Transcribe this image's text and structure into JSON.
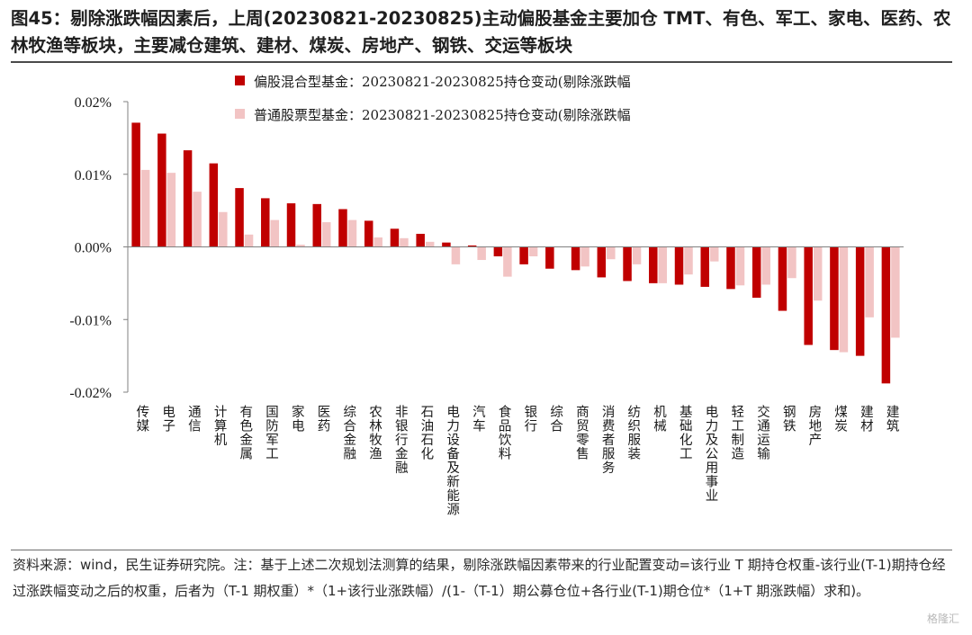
{
  "title": "图45：剔除涨跌幅因素后，上周(20230821-20230825)主动偏股基金主要加仓 TMT、有色、军工、家电、医药、农林牧渔等板块，主要减仓建筑、建材、煤炭、房地产、钢铁、交运等板块",
  "note": "资料来源：wind，民生证券研究院。注：基于上述二次规划法测算的结果，剔除涨跌幅因素带来的行业配置变动=该行业 T 期持仓权重-该行业(T-1)期持仓经过涨跌幅变动之后的权重，后者为（T-1 期权重）*（1+该行业涨跌幅）/(1-（T-1）期公募仓位+各行业(T-1)期仓位*（1+T 期涨跌幅）求和)。",
  "watermark": "格隆汇",
  "chart_data": {
    "type": "bar",
    "categories": [
      "传媒",
      "电子",
      "通信",
      "计算机",
      "有色金属",
      "国防军工",
      "家电",
      "医药",
      "综合金融",
      "农林牧渔",
      "非银行金融",
      "石油石化",
      "电力设备及新能源",
      "汽车",
      "食品饮料",
      "银行",
      "综合",
      "商贸零售",
      "消费者服务",
      "纺织服装",
      "机械",
      "基础化工",
      "电力及公用事业",
      "轻工制造",
      "交通运输",
      "钢铁",
      "房地产",
      "煤炭",
      "建材",
      "建筑"
    ],
    "series": [
      {
        "name": "偏股混合型基金：20230821-20230825持仓变动(剔除涨跌幅",
        "color": "#c00000",
        "values": [
          0.0171,
          0.0156,
          0.0133,
          0.0115,
          0.0081,
          0.0067,
          0.006,
          0.0059,
          0.0052,
          0.0036,
          0.0025,
          0.0018,
          0.0006,
          0.0002,
          -0.0013,
          -0.0024,
          -0.003,
          -0.0032,
          -0.0042,
          -0.0047,
          -0.005,
          -0.0052,
          -0.0055,
          -0.0058,
          -0.007,
          -0.0088,
          -0.0135,
          -0.0142,
          -0.015,
          -0.0188
        ]
      },
      {
        "name": "普通股票型基金：20230821-20230825持仓变动(剔除涨跌幅",
        "color": "#f2c4c4",
        "values": [
          0.0106,
          0.0102,
          0.0076,
          0.0048,
          0.0017,
          0.0037,
          0.0003,
          0.0034,
          0.0037,
          0.0013,
          0.0012,
          0.0007,
          -0.0024,
          -0.0018,
          -0.0041,
          -0.0013,
          0.0,
          -0.0027,
          -0.0017,
          -0.0024,
          -0.005,
          -0.0038,
          -0.002,
          -0.0053,
          -0.0052,
          -0.0043,
          -0.0074,
          -0.0145,
          -0.0097,
          -0.0125
        ]
      }
    ],
    "yticks": [
      "0.02%",
      "0.01%",
      "0.00%",
      "-0.01%",
      "-0.02%"
    ],
    "ylim": [
      -0.02,
      0.02
    ],
    "legend_position": "top-center"
  }
}
